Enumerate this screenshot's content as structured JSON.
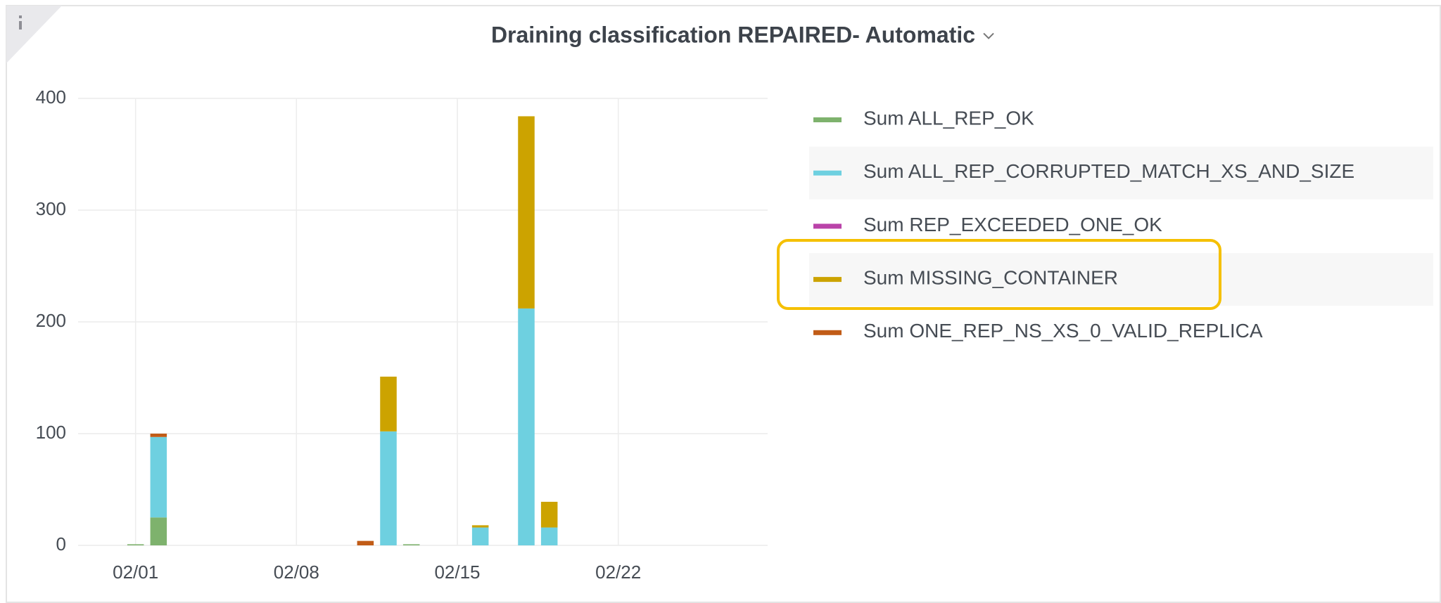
{
  "chart_data": {
    "type": "stacked_bar",
    "title": "Draining classification REPAIRED- Automatic",
    "x": [
      "02/01",
      "02/02",
      "02/11",
      "02/12",
      "02/13",
      "02/16",
      "02/18",
      "02/19"
    ],
    "xlim": [
      "01/30",
      "02/28"
    ],
    "xticks": [
      "02/01",
      "02/08",
      "02/15",
      "02/22"
    ],
    "ylim": [
      0,
      400
    ],
    "yticks": [
      0,
      100,
      200,
      300,
      400
    ],
    "grid": true,
    "legend": "right",
    "series": [
      {
        "name": "Sum ALL_REP_OK",
        "color": "#7eb26d",
        "values": [
          1,
          25,
          0,
          0,
          1,
          0,
          0,
          0
        ]
      },
      {
        "name": "Sum ALL_REP_CORRUPTED_MATCH_XS_AND_SIZE",
        "color": "#6ed0e0",
        "values": [
          0,
          72,
          0,
          102,
          0,
          16,
          212,
          16
        ]
      },
      {
        "name": "Sum REP_EXCEEDED_ONE_OK",
        "color": "#ba43a9",
        "values": [
          0,
          0,
          0,
          0,
          0,
          0,
          0,
          0
        ]
      },
      {
        "name": "Sum MISSING_CONTAINER",
        "color": "#cca300",
        "values": [
          0,
          0,
          0,
          49,
          0,
          2,
          172,
          23
        ]
      },
      {
        "name": "Sum ONE_REP_NS_XS_0_VALID_REPLICA",
        "color": "#c15c17",
        "values": [
          0,
          3,
          4,
          0,
          0,
          0,
          0,
          0
        ]
      }
    ]
  }
}
